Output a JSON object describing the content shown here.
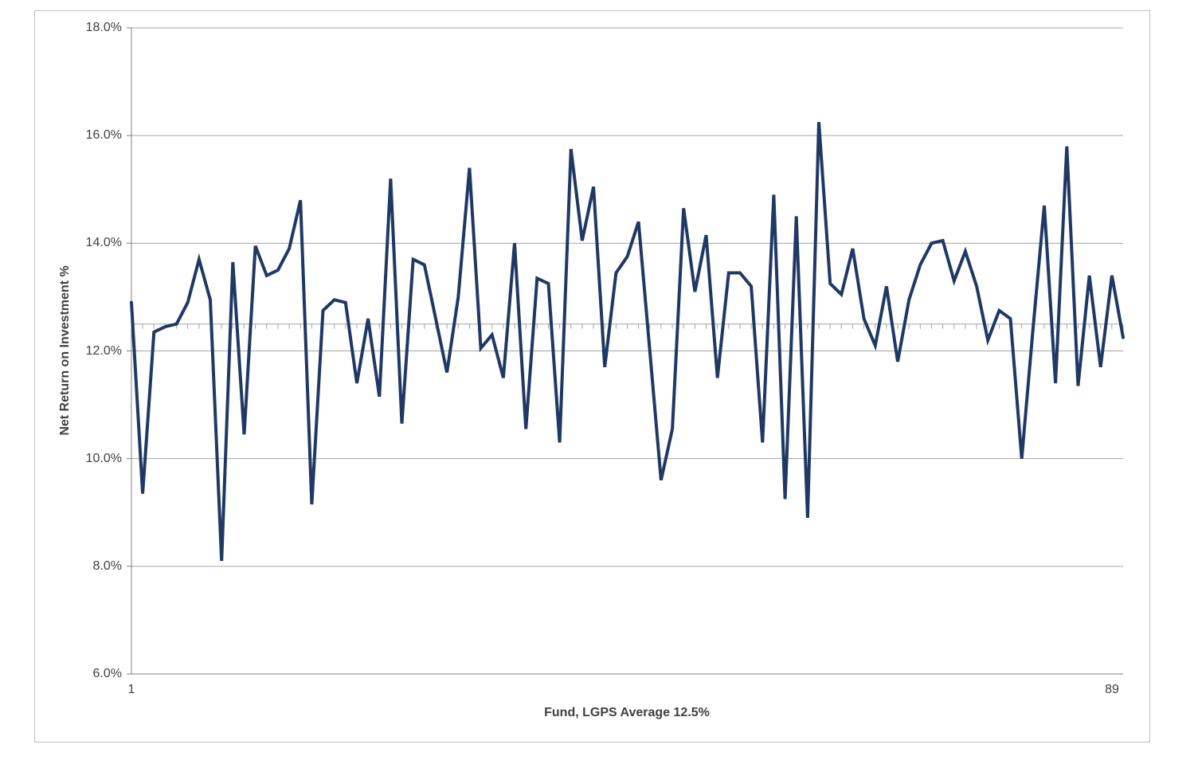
{
  "chart_data": {
    "type": "line",
    "title": "",
    "xlabel": "Fund, LGPS Average 12.5%",
    "ylabel": "Net Return on Investment %",
    "ylim": [
      6,
      18
    ],
    "ytick_step": 2,
    "ytick_labels": [
      "6.0%",
      "8.0%",
      "10.0%",
      "12.0%",
      "14.0%",
      "16.0%",
      "18.0%"
    ],
    "xtick_labels": [
      "1",
      "89"
    ],
    "x_first": 1,
    "x_last": 89,
    "average_line_value": 12.5,
    "grid": true,
    "legend": "none",
    "series": [
      {
        "name": "Net Return on Investment % by Fund",
        "values": [
          12.9,
          9.35,
          12.35,
          12.45,
          12.5,
          12.9,
          13.7,
          12.95,
          8.1,
          13.65,
          10.45,
          13.95,
          13.4,
          13.5,
          13.9,
          14.8,
          9.15,
          12.75,
          12.95,
          12.9,
          11.4,
          12.6,
          11.15,
          15.2,
          10.65,
          13.7,
          13.6,
          12.6,
          11.6,
          13.0,
          15.4,
          12.05,
          12.3,
          11.5,
          14.0,
          10.55,
          13.35,
          13.25,
          10.3,
          15.75,
          14.05,
          15.05,
          11.7,
          13.45,
          13.75,
          14.4,
          12.0,
          9.6,
          10.55,
          14.65,
          13.1,
          14.15,
          11.5,
          13.45,
          13.45,
          13.2,
          10.3,
          14.9,
          9.25,
          14.5,
          8.9,
          16.25,
          13.25,
          13.05,
          13.9,
          12.6,
          12.1,
          13.2,
          11.8,
          12.95,
          13.6,
          14.0,
          14.05,
          13.3,
          13.85,
          13.2,
          12.2,
          12.75,
          12.6,
          10.0,
          12.4,
          14.7,
          11.4,
          15.8,
          11.35,
          13.4,
          11.7,
          13.4,
          12.25
        ]
      }
    ],
    "colors": {
      "line": "#1f3864",
      "gridline": "#a6a6a6",
      "axis": "#808080",
      "average_line": "#a6a6a6",
      "frame_border": "#bfbfbf",
      "text": "#404040",
      "background": "#ffffff"
    }
  }
}
